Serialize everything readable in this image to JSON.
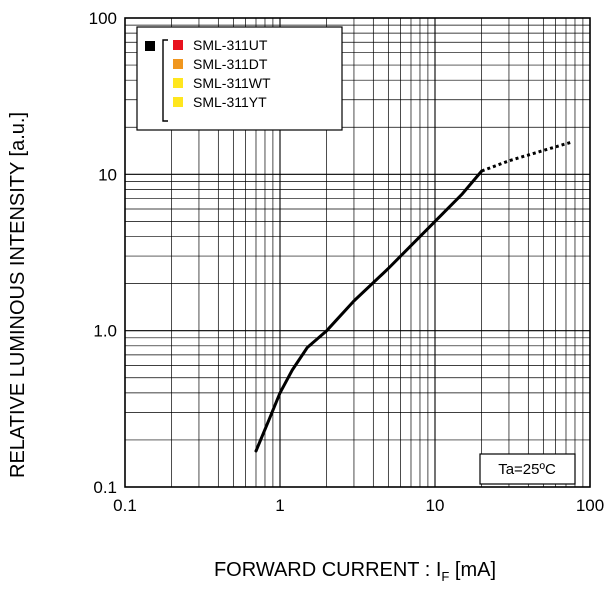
{
  "chart_data": {
    "type": "line",
    "title": "",
    "xlabel": "FORWARD CURRENT : I",
    "xlabel_sub": "F",
    "xlabel_unit": " [mA]",
    "ylabel": "RELATIVE LUMINOUS INTENSITY [a.u.]",
    "x_scale": "log",
    "y_scale": "log",
    "xlim": [
      0.1,
      100
    ],
    "ylim": [
      0.1,
      100
    ],
    "grid": true,
    "x_ticks": [
      "0.1",
      "1",
      "10",
      "100"
    ],
    "y_ticks": [
      "0.1",
      "1.0",
      "10",
      "100"
    ],
    "legend_position": "top-left",
    "legend": {
      "group_swatch_color": "#000000",
      "entries": [
        {
          "label": "SML-311UT",
          "color": "#e8121e"
        },
        {
          "label": "SML-311DT",
          "color": "#f0961e"
        },
        {
          "label": "SML-311WT",
          "color": "#ffe61e"
        },
        {
          "label": "SML-311YT",
          "color": "#ffe61e"
        }
      ]
    },
    "annotation": "Ta=25ºC",
    "series": [
      {
        "style": "solid",
        "x": [
          0.7,
          0.85,
          1.0,
          1.2,
          1.5,
          2.0,
          3.0,
          5.0,
          10.0,
          15.0,
          20.0
        ],
        "y": [
          0.17,
          0.27,
          0.4,
          0.56,
          0.78,
          1.0,
          1.55,
          2.5,
          5.0,
          7.5,
          10.5
        ]
      },
      {
        "style": "dotted",
        "x": [
          20.0,
          30.0,
          50.0,
          75.0
        ],
        "y": [
          10.5,
          12.2,
          14.2,
          16.0
        ]
      }
    ]
  }
}
